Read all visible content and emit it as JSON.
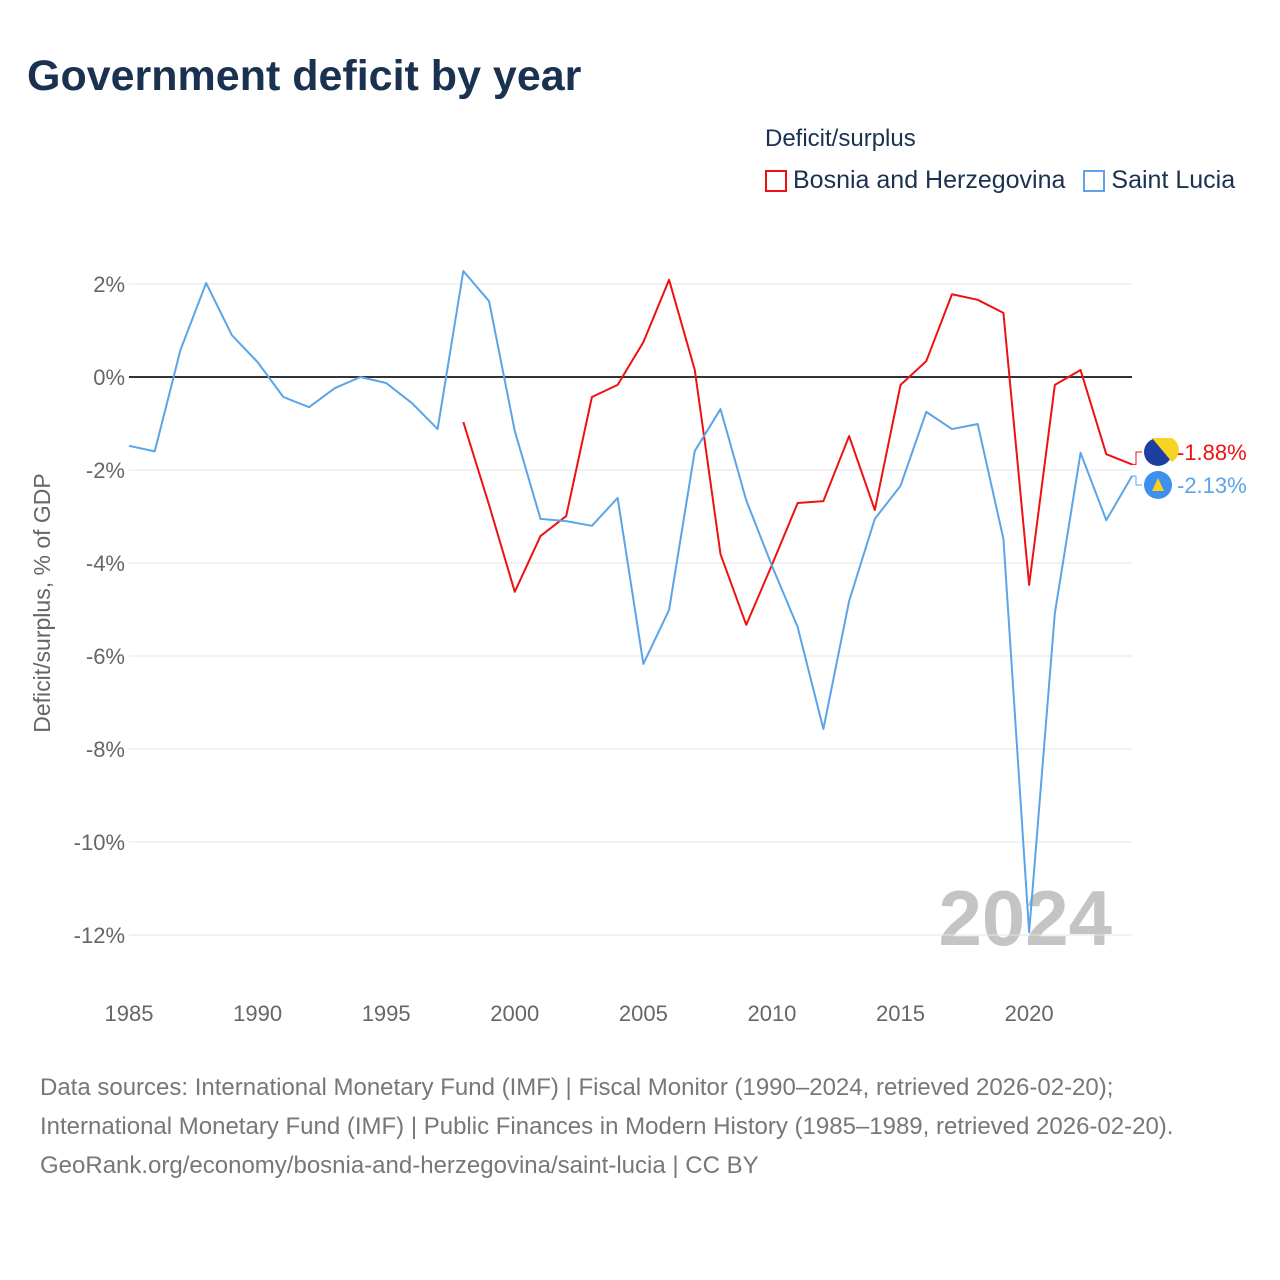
{
  "chart_data": {
    "type": "line",
    "title": "Government deficit by year",
    "ylabel": "Deficit/surplus, % of GDP",
    "xlabel": "",
    "xlim": [
      1985,
      2024
    ],
    "ylim": [
      -13,
      2.5
    ],
    "x_ticks": [
      "1985",
      "1990",
      "1995",
      "2000",
      "2005",
      "2010",
      "2015",
      "2020"
    ],
    "y_ticks": [
      {
        "v": 2,
        "label": "2%"
      },
      {
        "v": 0,
        "label": "0%"
      },
      {
        "v": -2,
        "label": "-2%"
      },
      {
        "v": -4,
        "label": "-4%"
      },
      {
        "v": -6,
        "label": "-6%"
      },
      {
        "v": -8,
        "label": "-8%"
      },
      {
        "v": -10,
        "label": "-10%"
      },
      {
        "v": -12,
        "label": "-12%"
      }
    ],
    "legend_title": "Deficit/surplus",
    "legend_position": "top-right",
    "year_watermark": "2024",
    "series": [
      {
        "name": "Bosnia and Herzegovina",
        "color": "#ee1111",
        "end_label": "-1.88%",
        "start_year": 1998,
        "values": [
          -0.97,
          -2.75,
          -4.62,
          -3.42,
          -2.99,
          -0.43,
          -0.17,
          0.75,
          2.09,
          0.15,
          -3.81,
          -5.33,
          -4.04,
          -2.71,
          -2.67,
          -1.27,
          -2.86,
          -0.17,
          0.34,
          1.78,
          1.66,
          1.38,
          -4.47,
          -0.17,
          0.15,
          -1.66,
          -1.88
        ]
      },
      {
        "name": "Saint Lucia",
        "color": "#5ba4e8",
        "end_label": "-2.13%",
        "start_year": 1985,
        "values": [
          -1.48,
          -1.6,
          0.58,
          2.02,
          0.9,
          0.32,
          -0.43,
          -0.65,
          -0.24,
          0.0,
          -0.13,
          -0.56,
          -1.12,
          2.28,
          1.63,
          -1.16,
          -3.05,
          -3.1,
          -3.2,
          -2.6,
          -6.17,
          -5.01,
          -1.59,
          -0.69,
          -2.65,
          -4.06,
          -5.38,
          -7.57,
          -4.82,
          -3.05,
          -2.34,
          -0.75,
          -1.12,
          -1.01,
          -3.48,
          -11.94,
          -5.08,
          -1.63,
          -3.08,
          -2.13
        ]
      }
    ]
  },
  "footer": {
    "sources": "Data sources: International Monetary Fund (IMF) | Fiscal Monitor (1990–2024, retrieved 2026-02-20); International Monetary Fund (IMF) | Public Finances in Modern History (1985–1989, retrieved 2026-02-20).",
    "url": "GeoRank.org/economy/bosnia-and-herzegovina/saint-lucia | CC BY"
  }
}
